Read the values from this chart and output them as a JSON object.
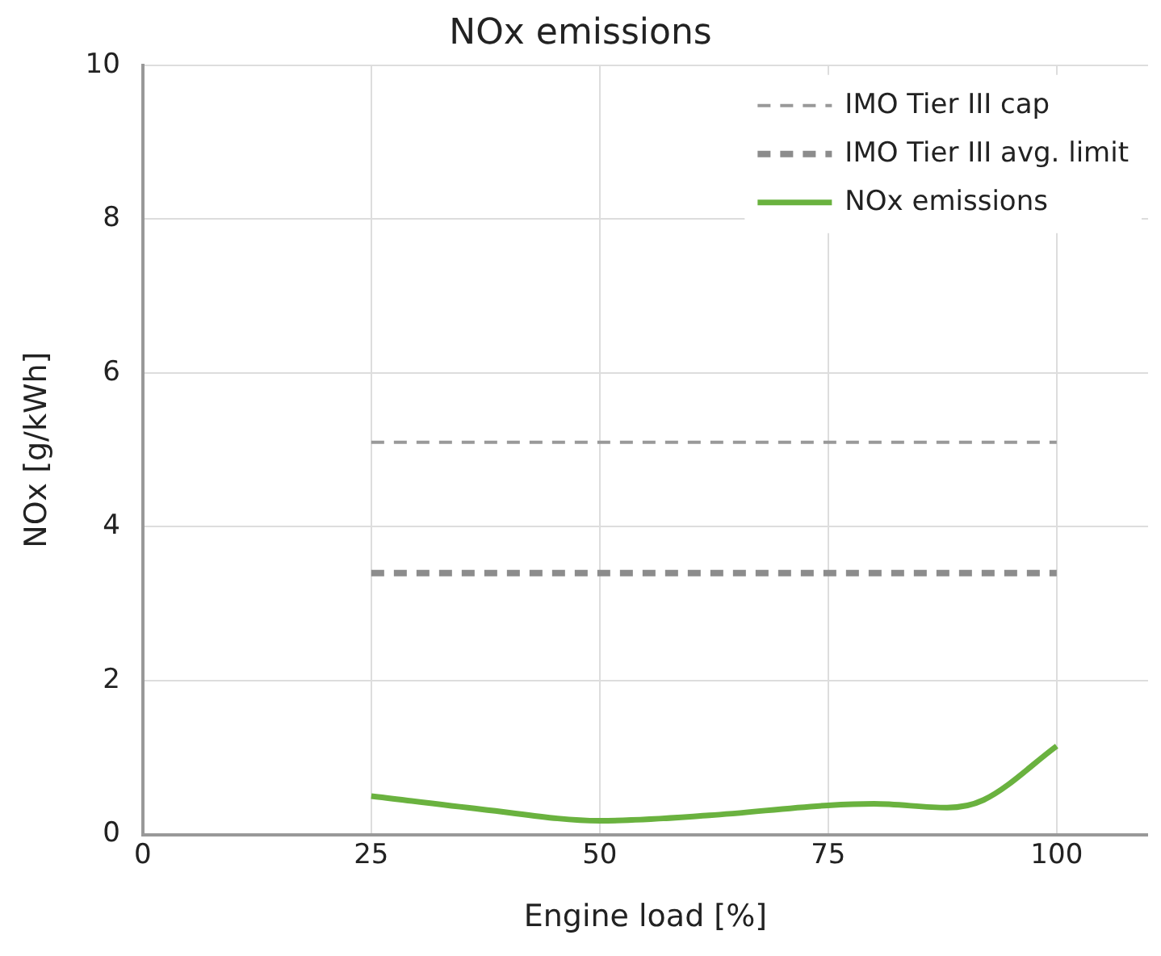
{
  "chart_data": {
    "type": "line",
    "title": "NOx emissions",
    "xlabel": "Engine load [%]",
    "ylabel": "NOx [g/kWh]",
    "xlim": [
      0,
      110
    ],
    "xticks": [
      0,
      25,
      50,
      75,
      100
    ],
    "ylim": [
      0,
      10
    ],
    "yticks": [
      0,
      2,
      4,
      6,
      8,
      10
    ],
    "grid": true,
    "legend": "top right",
    "marker": "none",
    "series": [
      {
        "name": "IMO Tier III cap",
        "color": "#999999",
        "line_style": "dashed",
        "x": [
          25,
          100
        ],
        "values": [
          5.1,
          5.1
        ]
      },
      {
        "name": "IMO Tier III avg. limit",
        "color": "#8c8c8c",
        "line_style": "dashed",
        "x": [
          25,
          100
        ],
        "values": [
          3.4,
          3.4
        ]
      },
      {
        "name": "NOx emissions",
        "color": "#6ab23f",
        "line_style": "solid",
        "x": [
          25,
          37,
          50,
          62,
          75,
          80,
          88,
          92,
          100
        ],
        "values": [
          0.5,
          0.33,
          0.18,
          0.25,
          0.38,
          0.4,
          0.35,
          0.45,
          1.15
        ]
      }
    ]
  }
}
